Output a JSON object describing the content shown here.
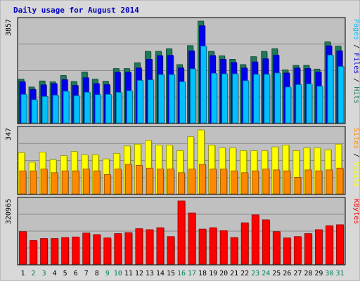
{
  "chart_data": {
    "type": "bar",
    "title": "Daily usage for August 2014",
    "categories": [
      "1",
      "2",
      "3",
      "4",
      "5",
      "6",
      "7",
      "8",
      "9",
      "10",
      "11",
      "12",
      "13",
      "14",
      "15",
      "16",
      "17",
      "18",
      "19",
      "20",
      "21",
      "22",
      "23",
      "24",
      "25",
      "26",
      "27",
      "28",
      "29",
      "30",
      "31"
    ],
    "weekend_days": [
      "2",
      "3",
      "9",
      "10",
      "16",
      "17",
      "23",
      "24",
      "30",
      "31"
    ],
    "colors": {
      "hits": "#1f7a5a",
      "files": "#0000ee",
      "pages": "#00c0ff",
      "visits": "#ffff00",
      "sites": "#ff8800",
      "kbytes": "#ff0000",
      "panel_bg": "#c0c0c0",
      "title": "#0000c0",
      "weekday_label": "#000000",
      "weekend_label": "#00805a"
    },
    "panels": [
      {
        "id": "hits-files-pages",
        "max_label": "3857",
        "ymax": 3857,
        "right_label": [
          {
            "text": "Pages",
            "color": "#00c0ff"
          },
          {
            "text": " / ",
            "color": "#000000"
          },
          {
            "text": "Files",
            "color": "#0000ee"
          },
          {
            "text": " / ",
            "color": "#000000"
          },
          {
            "text": "Hits",
            "color": "#1f7a5a"
          }
        ],
        "series": [
          {
            "name": "Hits",
            "values": [
              1660,
              1360,
              1590,
              1560,
              1800,
              1570,
              1930,
              1660,
              1580,
              2060,
              2060,
              2280,
              2710,
              2710,
              2810,
              2210,
              2930,
              3857,
              2710,
              2540,
              2410,
              2210,
              2510,
              2710,
              2810,
              2010,
              2180,
              2180,
              2040,
              3070,
              2910
            ]
          },
          {
            "name": "Files",
            "values": [
              1560,
              1270,
              1440,
              1490,
              1640,
              1420,
              1710,
              1490,
              1450,
              1920,
              1920,
              2080,
              2410,
              2550,
              2560,
              2080,
              2730,
              3680,
              2550,
              2410,
              2290,
              2080,
              2310,
              2430,
              2570,
              1890,
              2080,
              2060,
              1930,
              2920,
              2730
            ]
          },
          {
            "name": "Pages",
            "values": [
              1080,
              880,
              1000,
              1050,
              1200,
              1030,
              1160,
              1070,
              1080,
              1160,
              1220,
              1610,
              1630,
              1830,
              1830,
              1560,
              2050,
              2910,
              1880,
              1860,
              1860,
              1600,
              1840,
              1840,
              1890,
              1360,
              1450,
              1480,
              1390,
              2570,
              2140
            ]
          }
        ]
      },
      {
        "id": "visits-sites",
        "max_label": "347",
        "ymax": 347,
        "right_label": [
          {
            "text": "Sites",
            "color": "#ff8800"
          },
          {
            "text": " / ",
            "color": "#000000"
          },
          {
            "text": "Visits",
            "color": "#ffff00"
          }
        ],
        "series": [
          {
            "name": "Visits",
            "values": [
              224,
              172,
              227,
              185,
              207,
              230,
              212,
              212,
              190,
              220,
              260,
              270,
              290,
              265,
              265,
              235,
              310,
              347,
              265,
              250,
              250,
              235,
              235,
              235,
              255,
              265,
              235,
              250,
              250,
              240,
              270
            ]
          },
          {
            "name": "Sites",
            "values": [
              125,
              125,
              135,
              115,
              125,
              125,
              135,
              125,
              105,
              135,
              160,
              155,
              140,
              135,
              135,
              115,
              135,
              160,
              135,
              135,
              125,
              115,
              125,
              135,
              130,
              125,
              90,
              130,
              125,
              130,
              140
            ]
          }
        ]
      },
      {
        "id": "kbytes",
        "max_label": "320965",
        "ymax": 320965,
        "right_label": [
          {
            "text": "KBytes",
            "color": "#ff0000"
          }
        ],
        "series": [
          {
            "name": "KBytes",
            "values": [
              165000,
              120000,
              130000,
              130000,
              135000,
              138000,
              158000,
              150000,
              133000,
              155000,
              160000,
              180000,
              175000,
              185000,
              140000,
              320965,
              260000,
              178000,
              185000,
              170000,
              135000,
              210000,
              250000,
              225000,
              165000,
              133000,
              140000,
              155000,
              175000,
              195000,
              200000
            ]
          }
        ]
      }
    ]
  }
}
